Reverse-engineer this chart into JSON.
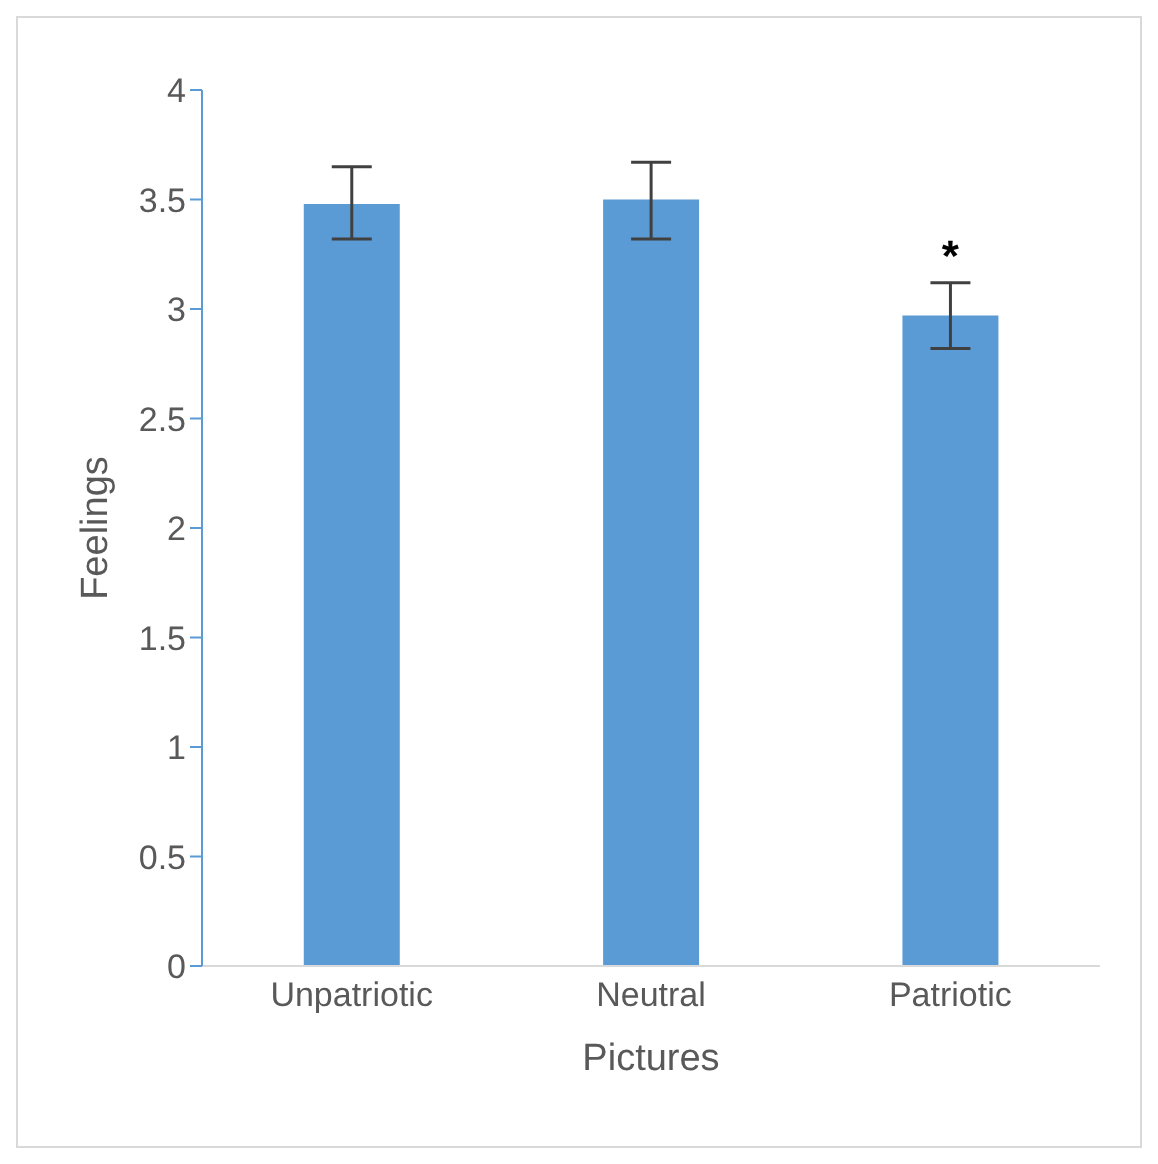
{
  "chart_data": {
    "type": "bar",
    "xlabel": "Pictures",
    "ylabel": "Feelings",
    "categories": [
      "Unpatriotic",
      "Neutral",
      "Patriotic"
    ],
    "values": [
      3.48,
      3.5,
      2.97
    ],
    "errors": [
      [
        3.32,
        3.65
      ],
      [
        3.32,
        3.67
      ],
      [
        2.82,
        3.12
      ]
    ],
    "color": "#5b9bd5",
    "ylim": [
      0,
      4
    ],
    "yticks": [
      0,
      0.5,
      1,
      1.5,
      2,
      2.5,
      3,
      3.5,
      4
    ],
    "grid": false,
    "annotations": [
      {
        "text": "*",
        "x": "Patriotic",
        "y": 3.12
      }
    ]
  }
}
